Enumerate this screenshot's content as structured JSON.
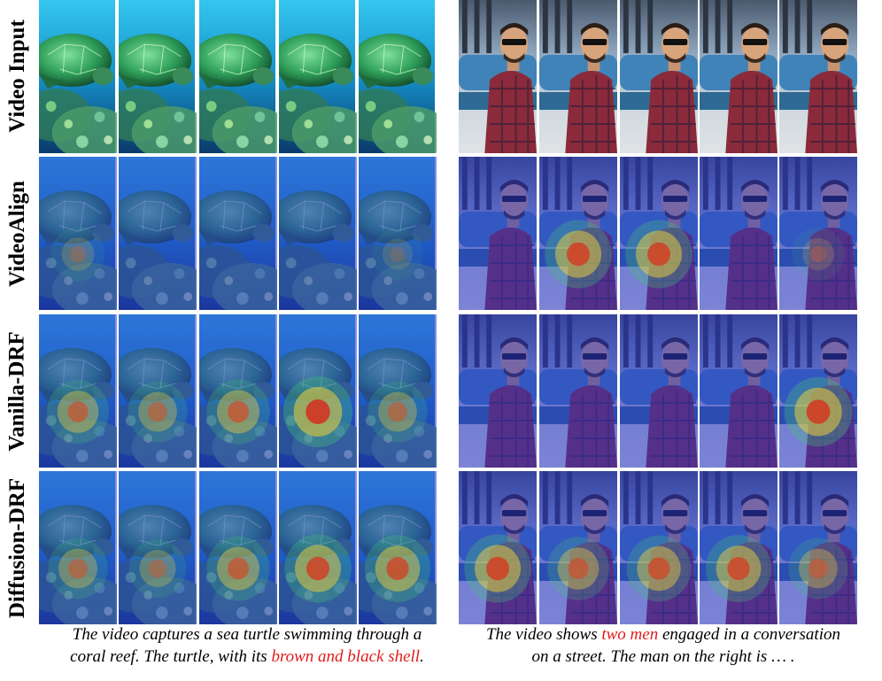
{
  "rows": [
    {
      "label": "Video Input",
      "kind": "input"
    },
    {
      "label": "VideoAlign",
      "kind": "videoalign"
    },
    {
      "label": "Vanilla-DRF",
      "kind": "vanilla"
    },
    {
      "label": "Diffusion-DRF",
      "kind": "diffusion"
    }
  ],
  "captions": {
    "turtle": {
      "line1": "The video captures a sea turtle swimming through a",
      "line2_prefix": "coral reef. The turtle, with its ",
      "line2_highlight": "brown and black shell",
      "line2_suffix": "."
    },
    "men": {
      "line1_prefix": "The video shows ",
      "line1_highlight": "two men",
      "line1_suffix": " engaged in a conversation",
      "line2": "on a street. The man on the right is … ."
    }
  },
  "colors": {
    "highlight": "#e01b1b",
    "ocean": "#1f8fc8",
    "heat_low": "#2a35c9",
    "heat_high": "#d8261a"
  },
  "heat": {
    "videoalign": {
      "turtle": [
        {
          "frame": 0,
          "level": 0.35
        },
        {
          "frame": 4,
          "level": 0.25
        }
      ],
      "men": [
        {
          "frame": 1,
          "level": 0.9
        },
        {
          "frame": 2,
          "level": 0.9
        },
        {
          "frame": 4,
          "level": 0.3
        }
      ]
    },
    "vanilla": {
      "turtle": [
        {
          "frame": 0,
          "level": 0.7
        },
        {
          "frame": 1,
          "level": 0.6
        },
        {
          "frame": 2,
          "level": 0.75
        },
        {
          "frame": 3,
          "level": 1.0
        },
        {
          "frame": 4,
          "level": 0.6
        }
      ],
      "men": [
        {
          "frame": 4,
          "level": 0.95
        }
      ]
    },
    "diffusion": {
      "turtle": [
        {
          "frame": 0,
          "level": 0.6
        },
        {
          "frame": 1,
          "level": 0.5
        },
        {
          "frame": 2,
          "level": 0.75
        },
        {
          "frame": 3,
          "level": 0.9
        },
        {
          "frame": 4,
          "level": 0.85
        }
      ],
      "men": [
        {
          "frame": 0,
          "level": 0.9
        },
        {
          "frame": 1,
          "level": 0.7
        },
        {
          "frame": 2,
          "level": 0.8
        },
        {
          "frame": 3,
          "level": 0.85
        },
        {
          "frame": 4,
          "level": 0.6
        }
      ]
    }
  }
}
